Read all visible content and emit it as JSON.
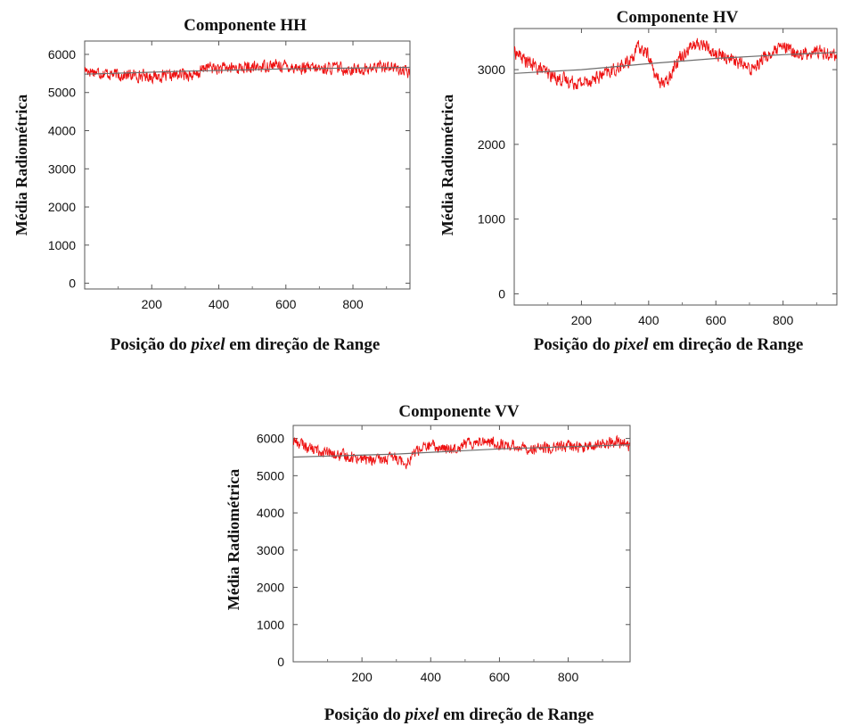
{
  "chart_data": [
    {
      "id": "hh",
      "type": "line",
      "title": "Componente HH",
      "xlabel_prefix": "Posição do ",
      "xlabel_italic": "pixel",
      "xlabel_suffix": " em direção de Range",
      "ylabel": "Média Radiométrica",
      "xlim": [
        0,
        970
      ],
      "ylim": [
        -150,
        6350
      ],
      "xticks": [
        200,
        400,
        600,
        800
      ],
      "yticks": [
        0,
        1000,
        2000,
        3000,
        4000,
        5000,
        6000
      ],
      "colors": {
        "series": "#ee1111",
        "trend": "#6e6e6e"
      },
      "series": [
        {
          "x": [
            0,
            50,
            100,
            150,
            200,
            250,
            300,
            330,
            360,
            400,
            450,
            500,
            550,
            600,
            650,
            700,
            750,
            800,
            850,
            900,
            970
          ],
          "values": [
            5600,
            5520,
            5460,
            5450,
            5430,
            5420,
            5500,
            5420,
            5680,
            5620,
            5650,
            5640,
            5720,
            5700,
            5630,
            5620,
            5650,
            5600,
            5620,
            5720,
            5500
          ]
        },
        {
          "x": [
            0,
            300,
            600,
            970
          ],
          "values": [
            5480,
            5560,
            5620,
            5660
          ]
        }
      ]
    },
    {
      "id": "hv",
      "type": "line",
      "title": "Componente HV",
      "xlabel_prefix": "Posição do ",
      "xlabel_italic": "pixel",
      "xlabel_suffix": " em direção de Range",
      "ylabel": "Média Radiométrica",
      "xlim": [
        0,
        960
      ],
      "ylim": [
        -150,
        3550
      ],
      "xticks": [
        200,
        400,
        600,
        800
      ],
      "yticks": [
        0,
        1000,
        2000,
        3000
      ],
      "colors": {
        "series": "#ee1111",
        "trend": "#6e6e6e"
      },
      "series": [
        {
          "x": [
            0,
            40,
            80,
            120,
            160,
            200,
            250,
            300,
            340,
            370,
            400,
            420,
            450,
            480,
            520,
            560,
            600,
            650,
            700,
            740,
            800,
            850,
            900,
            960
          ],
          "values": [
            3250,
            3100,
            3000,
            2900,
            2850,
            2820,
            2900,
            3000,
            3100,
            3300,
            3200,
            2900,
            2800,
            3100,
            3300,
            3350,
            3200,
            3150,
            3000,
            3150,
            3300,
            3200,
            3250,
            3200
          ]
        },
        {
          "x": [
            0,
            200,
            400,
            600,
            800,
            960
          ],
          "values": [
            2950,
            3000,
            3080,
            3150,
            3200,
            3230
          ]
        }
      ]
    },
    {
      "id": "vv",
      "type": "line",
      "title": "Componente VV",
      "xlabel_prefix": "Posição do ",
      "xlabel_italic": "pixel",
      "xlabel_suffix": " em direção de Range",
      "ylabel": "Média Radiométrica",
      "xlim": [
        0,
        980
      ],
      "ylim": [
        0,
        6350
      ],
      "xticks": [
        200,
        400,
        600,
        800
      ],
      "yticks": [
        0,
        1000,
        2000,
        3000,
        4000,
        5000,
        6000
      ],
      "colors": {
        "series": "#ee1111",
        "trend": "#6e6e6e"
      },
      "series": [
        {
          "x": [
            0,
            60,
            120,
            180,
            240,
            300,
            330,
            360,
            400,
            450,
            500,
            550,
            600,
            650,
            700,
            750,
            800,
            850,
            900,
            950,
            980
          ],
          "values": [
            5950,
            5700,
            5550,
            5500,
            5400,
            5500,
            5350,
            5700,
            5800,
            5700,
            5850,
            5950,
            5850,
            5800,
            5700,
            5750,
            5800,
            5750,
            5850,
            5900,
            5800
          ]
        },
        {
          "x": [
            0,
            300,
            600,
            980
          ],
          "values": [
            5500,
            5580,
            5720,
            5830
          ]
        }
      ]
    }
  ]
}
